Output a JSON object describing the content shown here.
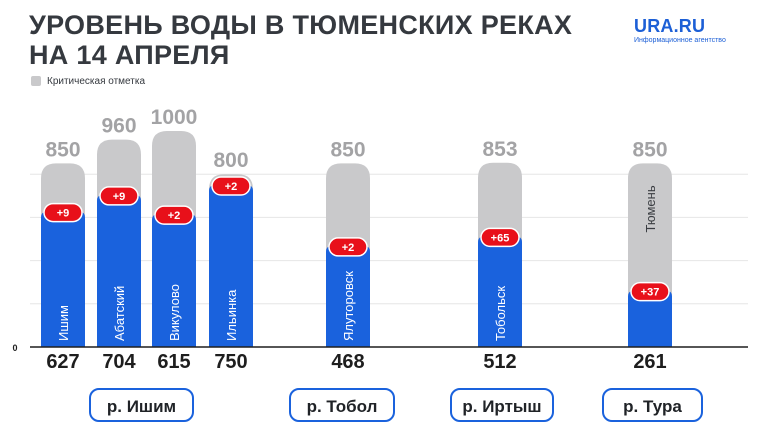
{
  "title_lines": [
    "УРОВЕНЬ ВОДЫ В ТЮМЕНСКИХ РЕКАХ",
    "НА 14 АПРЕЛЯ"
  ],
  "logo": {
    "name": "URA.RU",
    "subtitle": "Информационное агентство"
  },
  "legend": {
    "label": "Критическая отметка"
  },
  "colors": {
    "title": "#35393f",
    "level_bar": "#1a62dd",
    "critical_bar": "#c9c9cb",
    "critical_value": "#a3a3a5",
    "change_badge": "#e8101a",
    "axis": "#1e1e1e",
    "grid": "#e6e6e6",
    "brand": "#1c5fd6"
  },
  "chart_data": {
    "type": "bar",
    "ylim": [
      0,
      1000
    ],
    "y_ticks": [
      "0"
    ],
    "grid": true,
    "legend_position": "top-left",
    "categories": [
      "Ишим",
      "Абатский",
      "Викулово",
      "Ильинка",
      "Ялуторовск",
      "Тобольск",
      "Тюмень"
    ],
    "series": [
      {
        "name": "",
        "values": [
          627,
          704,
          615,
          750,
          468,
          512,
          261
        ]
      },
      {
        "name": "Критическая отметка",
        "values": [
          850,
          960,
          1000,
          800,
          850,
          853,
          850
        ]
      }
    ],
    "changes": [
      "+9",
      "+9",
      "+2",
      "+2",
      "+2",
      "+65",
      "+37"
    ],
    "groups": [
      {
        "label": "р. Ишим",
        "categories": [
          "Ишим",
          "Абатский",
          "Викулово",
          "Ильинка"
        ]
      },
      {
        "label": "р. Тобол",
        "categories": [
          "Ялуторовск"
        ]
      },
      {
        "label": "р. Иртыш",
        "categories": [
          "Тобольск"
        ]
      },
      {
        "label": "р. Тура",
        "categories": [
          "Тюмень"
        ]
      }
    ]
  }
}
